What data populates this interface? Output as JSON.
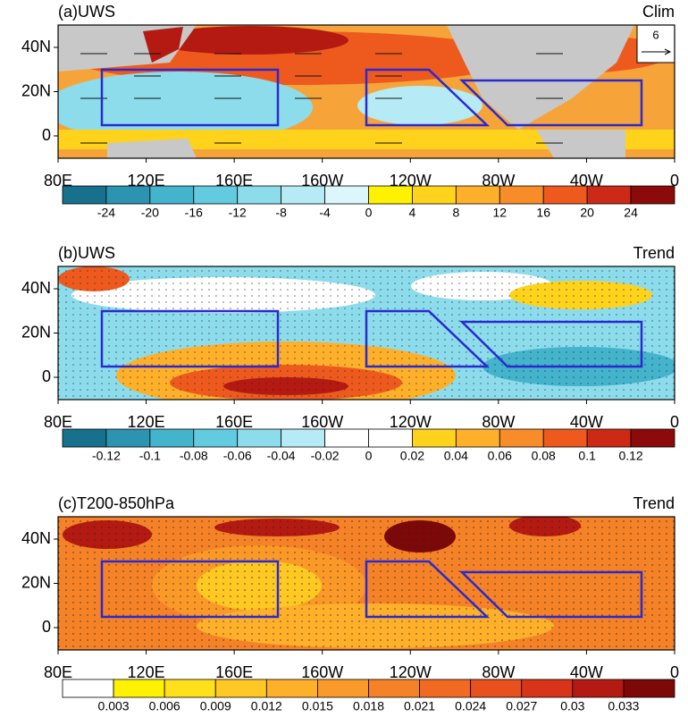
{
  "panels": [
    {
      "label": "(a)UWS",
      "tag": "Clim",
      "vector_key": "6",
      "yticks": [
        "40N",
        "20N",
        "0"
      ],
      "xticks": [
        "80E",
        "120E",
        "160E",
        "160W",
        "120W",
        "80W",
        "40W",
        "0"
      ],
      "colorbar": {
        "labels": [
          -24,
          -20,
          -16,
          -12,
          -8,
          -4,
          0,
          4,
          8,
          12,
          16,
          20,
          24
        ],
        "colors": [
          "#17708c",
          "#2c93b0",
          "#44b3cc",
          "#62cbe0",
          "#8cdcec",
          "#b6ebf5",
          "#dcf7fb",
          "#fff200",
          "#ffd21c",
          "#ffb02a",
          "#f88c28",
          "#ee5a1e",
          "#cc2a16",
          "#8c0a0a"
        ]
      }
    },
    {
      "label": "(b)UWS",
      "tag": "Trend",
      "yticks": [
        "40N",
        "20N",
        "0"
      ],
      "xticks": [
        "80E",
        "120E",
        "160E",
        "160W",
        "120W",
        "80W",
        "40W",
        "0"
      ],
      "colorbar": {
        "labels": [
          -0.12,
          -0.1,
          -0.08,
          -0.06,
          -0.04,
          -0.02,
          0,
          0.02,
          0.04,
          0.06,
          0.08,
          0.1,
          0.12
        ],
        "colors": [
          "#17708c",
          "#2c93b0",
          "#44b3cc",
          "#62cbe0",
          "#8cdcec",
          "#b6ebf5",
          "#ffffff",
          "#ffffff",
          "#ffd21c",
          "#ffb02a",
          "#f88c28",
          "#ee5a1e",
          "#cc2a16",
          "#8c0a0a"
        ]
      }
    },
    {
      "label": "(c)T200-850hPa",
      "tag": "Trend",
      "yticks": [
        "40N",
        "20N",
        "0"
      ],
      "xticks": [
        "80E",
        "120E",
        "160E",
        "160W",
        "120W",
        "80W",
        "40W",
        "0"
      ],
      "colorbar": {
        "labels": [
          0.003,
          0.006,
          0.009,
          0.012,
          0.015,
          0.018,
          0.021,
          0.024,
          0.027,
          0.03,
          0.033
        ],
        "colors": [
          "#ffffff",
          "#fff200",
          "#ffe01a",
          "#ffc824",
          "#ffb02a",
          "#f99a2a",
          "#f58226",
          "#f06a22",
          "#e8501e",
          "#d8341a",
          "#b41a12",
          "#7c0808"
        ]
      }
    }
  ]
}
